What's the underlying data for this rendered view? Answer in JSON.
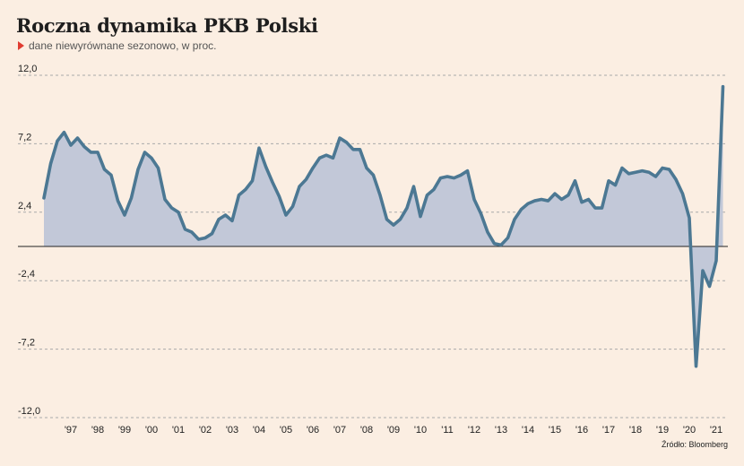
{
  "header": {
    "title": "Roczna dynamika PKB Polski",
    "subtitle": "dane niewyrównane sezonowo, w proc."
  },
  "source": "Źródło: Bloomberg",
  "colors": {
    "background": "#fbeee2",
    "line": "#4c7893",
    "area": "#c2c8d8",
    "zero_line": "#222222",
    "grid": "#aaaaaa",
    "marker": "#e03c31"
  },
  "chart_data": {
    "type": "area",
    "title": "Roczna dynamika PKB Polski",
    "subtitle": "dane niewyrównane sezonowo, w proc.",
    "xlabel": "",
    "ylabel": "",
    "ylim": [
      -12.0,
      12.0
    ],
    "yticks": [
      "12,0",
      "7,2",
      "2,4",
      "-2,4",
      "-7,2",
      "-12,0"
    ],
    "ytick_values": [
      12.0,
      7.2,
      2.4,
      -2.4,
      -7.2,
      -12.0
    ],
    "xticks": [
      "'97",
      "'98",
      "'99",
      "'00",
      "'01",
      "'02",
      "'03",
      "'04",
      "'05",
      "'06",
      "'07",
      "'08",
      "'09",
      "'10",
      "'11",
      "'12",
      "'13",
      "'14",
      "'15",
      "'16",
      "'17",
      "'18",
      "'19",
      "'20",
      "'21"
    ],
    "xtick_values": [
      1997,
      1998,
      1999,
      2000,
      2001,
      2002,
      2003,
      2004,
      2005,
      2006,
      2007,
      2008,
      2009,
      2010,
      2011,
      2012,
      2013,
      2014,
      2015,
      2016,
      2017,
      2018,
      2019,
      2020,
      2021
    ],
    "grid": true,
    "legend": "none",
    "series": [
      {
        "x": [
          1996.0,
          1996.25,
          1996.5,
          1996.75,
          1997.0,
          1997.25,
          1997.5,
          1997.75,
          1998.0,
          1998.25,
          1998.5,
          1998.75,
          1999.0,
          1999.25,
          1999.5,
          1999.75,
          2000.0,
          2000.25,
          2000.5,
          2000.75,
          2001.0,
          2001.25,
          2001.5,
          2001.75,
          2002.0,
          2002.25,
          2002.5,
          2002.75,
          2003.0,
          2003.25,
          2003.5,
          2003.75,
          2004.0,
          2004.25,
          2004.5,
          2004.75,
          2005.0,
          2005.25,
          2005.5,
          2005.75,
          2006.0,
          2006.25,
          2006.5,
          2006.75,
          2007.0,
          2007.25,
          2007.5,
          2007.75,
          2008.0,
          2008.25,
          2008.5,
          2008.75,
          2009.0,
          2009.25,
          2009.5,
          2009.75,
          2010.0,
          2010.25,
          2010.5,
          2010.75,
          2011.0,
          2011.25,
          2011.5,
          2011.75,
          2012.0,
          2012.25,
          2012.5,
          2012.75,
          2013.0,
          2013.25,
          2013.5,
          2013.75,
          2014.0,
          2014.25,
          2014.5,
          2014.75,
          2015.0,
          2015.25,
          2015.5,
          2015.75,
          2016.0,
          2016.25,
          2016.5,
          2016.75,
          2017.0,
          2017.25,
          2017.5,
          2017.75,
          2018.0,
          2018.25,
          2018.5,
          2018.75,
          2019.0,
          2019.25,
          2019.5,
          2019.75,
          2020.0,
          2020.25,
          2020.5,
          2020.75,
          2021.0,
          2021.25
        ],
        "values": [
          3.4,
          5.8,
          7.4,
          8.0,
          7.1,
          7.6,
          7.0,
          6.6,
          6.6,
          5.4,
          5.0,
          3.2,
          2.2,
          3.4,
          5.4,
          6.6,
          6.2,
          5.5,
          3.3,
          2.7,
          2.4,
          1.2,
          1.0,
          0.5,
          0.6,
          0.9,
          1.9,
          2.2,
          1.8,
          3.6,
          4.0,
          4.6,
          6.9,
          5.6,
          4.5,
          3.5,
          2.2,
          2.8,
          4.2,
          4.7,
          5.5,
          6.2,
          6.4,
          6.2,
          7.6,
          7.3,
          6.8,
          6.8,
          5.5,
          5.0,
          3.6,
          1.9,
          1.5,
          1.9,
          2.7,
          4.2,
          2.1,
          3.6,
          4.0,
          4.8,
          4.9,
          4.8,
          5.0,
          5.3,
          3.3,
          2.3,
          1.0,
          0.2,
          0.1,
          0.6,
          1.9,
          2.6,
          3.0,
          3.2,
          3.3,
          3.2,
          3.7,
          3.3,
          3.6,
          4.6,
          3.1,
          3.3,
          2.7,
          2.7,
          4.6,
          4.3,
          5.5,
          5.1,
          5.2,
          5.3,
          5.2,
          4.9,
          5.5,
          5.4,
          4.7,
          3.7,
          2.0,
          -8.4,
          -1.7,
          -2.8,
          -1.0,
          11.2
        ]
      }
    ]
  }
}
